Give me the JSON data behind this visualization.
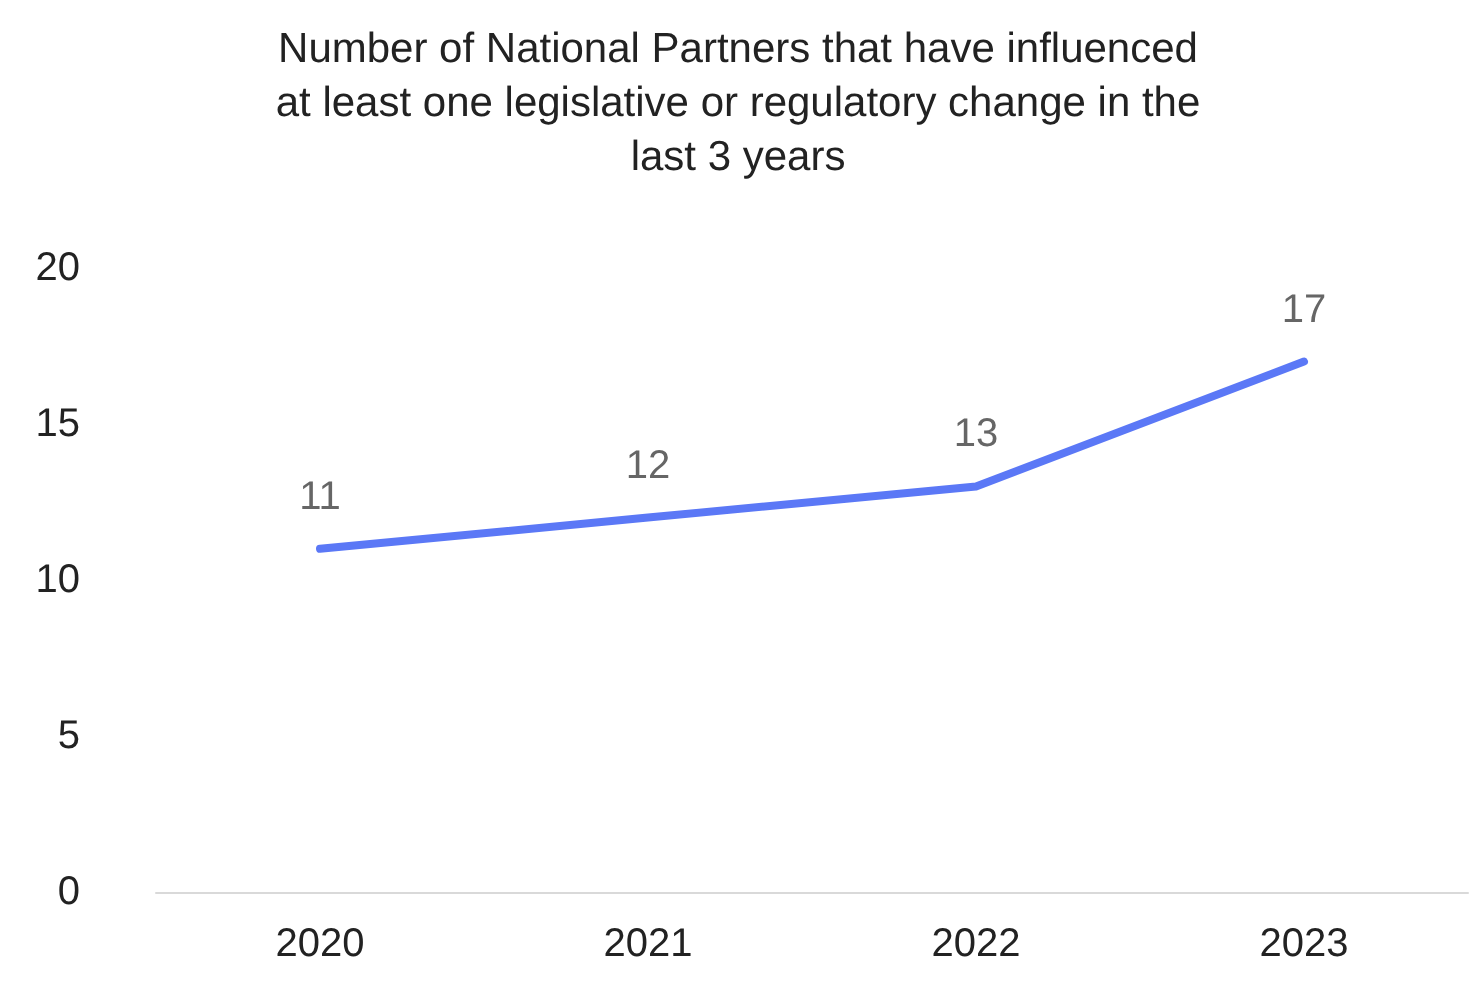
{
  "chart_data": {
    "type": "line",
    "title": "Number of National Partners that have influenced\nat least one legislative or regulatory change in the\nlast 3 years",
    "categories": [
      "2020",
      "2021",
      "2022",
      "2023"
    ],
    "series": [
      {
        "color": "#5b78f6",
        "values": [
          11,
          12,
          13,
          17
        ]
      }
    ],
    "ylim": [
      0,
      20
    ],
    "yticks": [
      0,
      5,
      10,
      15,
      20
    ],
    "marker": "none",
    "line_style": "solid",
    "data_labels": true
  }
}
